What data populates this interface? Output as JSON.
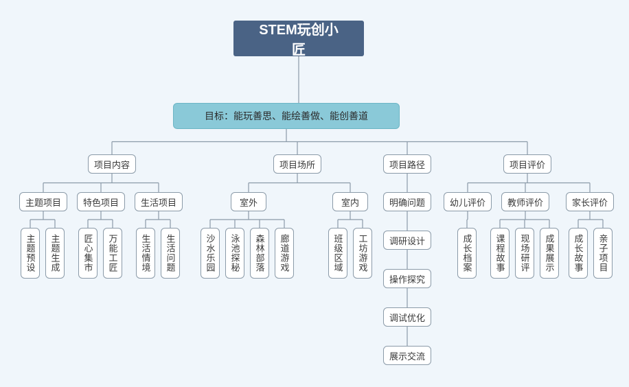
{
  "diagram": {
    "type": "tree",
    "background_color": "#f0f6fb",
    "node_border_color": "#8a9aa8",
    "node_bg_color": "#ffffff",
    "node_text_color": "#3a3a3a",
    "connector_color": "#8a9aa8",
    "root": {
      "label": "STEM玩创小匠",
      "bg_color": "#4a6385",
      "text_color": "#ffffff",
      "font_size": 20
    },
    "goal": {
      "label": "目标：能玩善思、能绘善做、能创善道",
      "bg_color": "#8ac9d8",
      "font_size": 14
    },
    "branches": [
      {
        "label": "项目内容",
        "children": [
          {
            "label": "主题项目",
            "leaves": [
              "主题预设",
              "主题生成"
            ]
          },
          {
            "label": "特色项目",
            "leaves": [
              "匠心集市",
              "万能工匠"
            ]
          },
          {
            "label": "生活项目",
            "leaves": [
              "生活情境",
              "生活问题"
            ]
          }
        ]
      },
      {
        "label": "项目场所",
        "children": [
          {
            "label": "室外",
            "leaves": [
              "沙水乐园",
              "泳池探秘",
              "森林部落",
              "廊道游戏"
            ]
          },
          {
            "label": "室内",
            "leaves": [
              "班级区域",
              "工坊游戏"
            ]
          }
        ]
      },
      {
        "label": "项目路径",
        "chain": [
          "明确问题",
          "调研设计",
          "操作探究",
          "调试优化",
          "展示交流"
        ]
      },
      {
        "label": "项目评价",
        "children": [
          {
            "label": "幼儿评价",
            "leaves": [
              "成长档案"
            ]
          },
          {
            "label": "教师评价",
            "leaves": [
              "课程故事",
              "现场研评",
              "成果展示"
            ]
          },
          {
            "label": "家长评价",
            "leaves": [
              "成长故事",
              "亲子项目"
            ]
          }
        ]
      }
    ]
  }
}
